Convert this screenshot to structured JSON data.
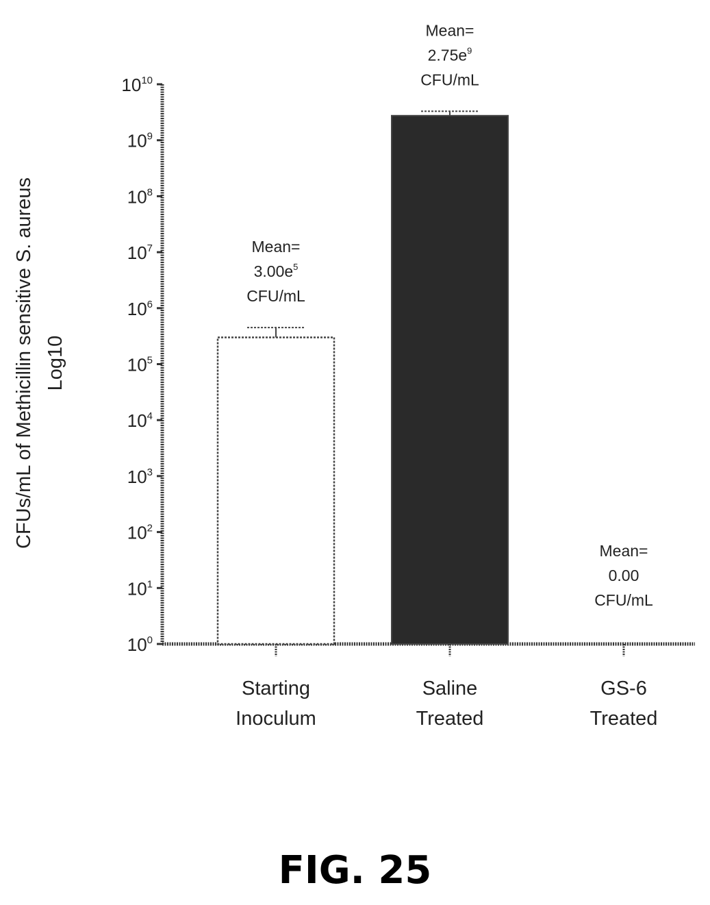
{
  "chart_data": {
    "type": "bar",
    "ylabel": "CFUs/mL of Methicillin sensitive S. aureus",
    "ylabel_line2": "Log10",
    "y_scale": "log",
    "ylim": [
      1,
      10000000000
    ],
    "y_ticks": [
      {
        "base": "10",
        "exp": "0"
      },
      {
        "base": "10",
        "exp": "1"
      },
      {
        "base": "10",
        "exp": "2"
      },
      {
        "base": "10",
        "exp": "3"
      },
      {
        "base": "10",
        "exp": "4"
      },
      {
        "base": "10",
        "exp": "5"
      },
      {
        "base": "10",
        "exp": "6"
      },
      {
        "base": "10",
        "exp": "7"
      },
      {
        "base": "10",
        "exp": "8"
      },
      {
        "base": "10",
        "exp": "9"
      },
      {
        "base": "10",
        "exp": "10"
      }
    ],
    "categories": [
      {
        "line1": "Starting",
        "line2": "Inoculum"
      },
      {
        "line1": "Saline",
        "line2": "Treated"
      },
      {
        "line1": "GS-6",
        "line2": "Treated"
      }
    ],
    "values": [
      300000,
      2750000000,
      0
    ],
    "error_upper": [
      450000,
      3300000000,
      null
    ],
    "bar_fills": [
      "#ffffff",
      "#2a2a2a",
      "#ffffff"
    ],
    "annotations": [
      {
        "line1": "Mean=",
        "line2_base": "3.00e",
        "line2_exp": "5",
        "line3": "CFU/mL"
      },
      {
        "line1": "Mean=",
        "line2_base": "2.75e",
        "line2_exp": "9",
        "line3": "CFU/mL"
      },
      {
        "line1": "Mean=",
        "line2_base": "0.00",
        "line2_exp": "",
        "line3": "CFU/mL"
      }
    ],
    "grid": false,
    "legend": "none"
  },
  "figure_caption": "FIG. 25"
}
